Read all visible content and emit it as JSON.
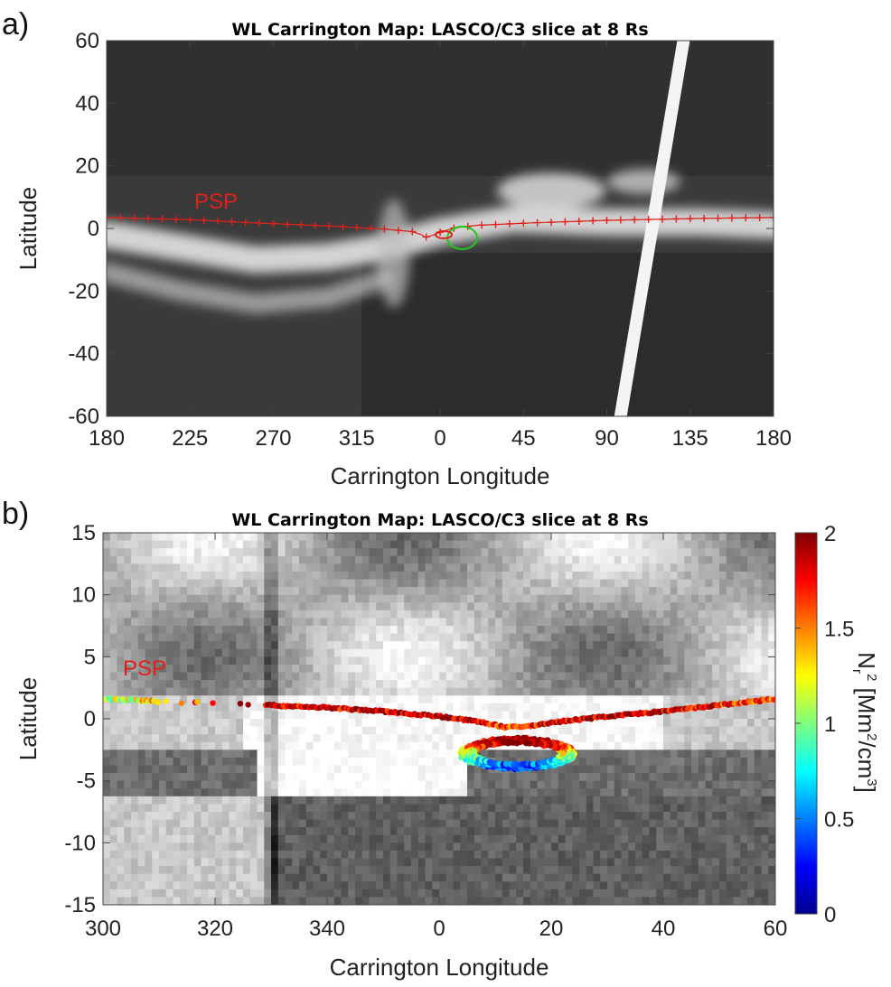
{
  "figure": {
    "colors": {
      "track_red": "#e0201a",
      "track_green": "#1ec81e"
    },
    "colorbar_stops": [
      "#00008f",
      "#0000ff",
      "#007fff",
      "#00ffff",
      "#7fff7f",
      "#ffff00",
      "#ff7f00",
      "#ff0000",
      "#7f0000"
    ]
  },
  "chart_data": [
    {
      "panel": "a)",
      "type": "heatmap",
      "title": "WL Carrington Map: LASCO/C3 slice at 8 Rs",
      "xlabel": "Carrington Longitude",
      "ylabel": "Latitude",
      "x_ticks": [
        "180",
        "225",
        "270",
        "315",
        "0",
        "45",
        "90",
        "135",
        "180"
      ],
      "y_ticks": [
        "60",
        "40",
        "20",
        "0",
        "-20",
        "-40",
        "-60"
      ],
      "xlim": [
        180,
        540
      ],
      "ylim": [
        -60,
        60
      ],
      "colormap": "gray",
      "annotation": "PSP",
      "psp_track": {
        "marker": "+",
        "x": [
          180,
          200,
          225,
          260,
          300,
          330,
          345,
          350,
          352,
          356,
          360,
          368,
          380,
          410,
          450,
          500,
          540
        ],
        "y": [
          3.5,
          3.2,
          2.8,
          1.8,
          0.8,
          -0.2,
          -1.0,
          -2.0,
          -2.8,
          -2.2,
          -1.2,
          0.2,
          1.0,
          1.8,
          2.6,
          3.2,
          3.5
        ]
      },
      "green_loop": {
        "center": [
          372,
          -3
        ],
        "rx": 8,
        "ry": 1.8
      },
      "features": [
        {
          "type": "streamer_band",
          "x": [
            180,
            220,
            260,
            300,
            330,
            360,
            400,
            450,
            500,
            540
          ],
          "y": [
            -2,
            -6,
            -10,
            -9,
            -6,
            -1,
            3,
            2,
            2,
            1
          ]
        },
        {
          "type": "streamer_band",
          "x": [
            180,
            220,
            260,
            300,
            330
          ],
          "y": [
            -14,
            -20,
            -24,
            -22,
            -16
          ]
        },
        {
          "type": "stripe",
          "x": [
            454,
            472
          ],
          "y": [
            -60,
            60
          ]
        }
      ]
    },
    {
      "panel": "b)",
      "type": "heatmap",
      "title": "WL Carrington Map: LASCO/C3 slice at 8 Rs",
      "xlabel": "Carrington Longitude",
      "ylabel": "Latitude",
      "x_ticks": [
        "300",
        "320",
        "340",
        "0",
        "20",
        "40",
        "60"
      ],
      "y_ticks": [
        "15",
        "10",
        "5",
        "0",
        "-5",
        "-10",
        "-15"
      ],
      "xlim": [
        300,
        420
      ],
      "ylim": [
        -15,
        15
      ],
      "colormap": "gray",
      "annotation": "PSP",
      "colorbar": {
        "label": "Nr^2 [Mm^2/cm^3]",
        "label_base": "N",
        "label_sub": "r",
        "label_sup": "2",
        "label_unit_open": " [Mm",
        "label_unit_sup": "2",
        "label_unit_mid": "/cm",
        "label_unit_sup2": "3",
        "label_unit_close": "]",
        "ticks": [
          "2",
          "1.5",
          "1",
          "0.5",
          "0"
        ],
        "range": [
          0,
          2
        ]
      },
      "psp_track": {
        "x": [
          300,
          305,
          310,
          329,
          340,
          350,
          360,
          368,
          372,
          376,
          380,
          390,
          400,
          410,
          420
        ],
        "y": [
          1.6,
          1.5,
          1.4,
          1.1,
          0.9,
          0.6,
          0.2,
          -0.3,
          -0.7,
          -0.6,
          -0.3,
          0.2,
          0.6,
          1.1,
          1.6
        ],
        "nr2": [
          1.0,
          1.2,
          1.5,
          1.9,
          1.8,
          1.9,
          1.9,
          1.8,
          1.6,
          1.7,
          1.8,
          1.9,
          1.8,
          1.7,
          1.5
        ]
      },
      "loop": {
        "center": [
          374,
          -2.8
        ],
        "rx": 10,
        "ry": 1.2
      }
    }
  ]
}
